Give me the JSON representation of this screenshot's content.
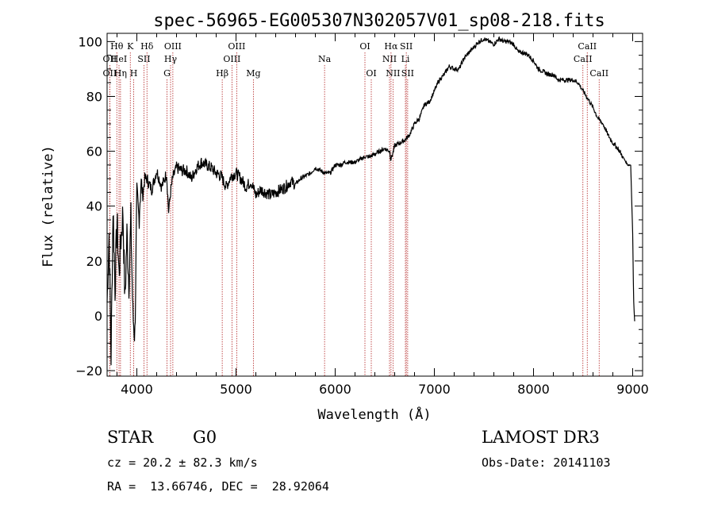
{
  "chart_data": {
    "type": "line",
    "title": "spec-56965-EG005307N302057V01_sp08-218.fits",
    "xlabel": "Wavelength (Å)",
    "ylabel": "Flux (relative)",
    "xlim": [
      3700,
      9100
    ],
    "ylim": [
      -22,
      103
    ],
    "xticks": [
      4000,
      5000,
      6000,
      7000,
      8000,
      9000
    ],
    "yticks": [
      -20,
      0,
      20,
      40,
      60,
      80,
      100
    ],
    "xtick_labels": [
      "4000",
      "5000",
      "6000",
      "7000",
      "8000",
      "9000"
    ],
    "ytick_labels": [
      "−20",
      "0",
      "20",
      "40",
      "60",
      "80",
      "100"
    ],
    "series": [
      {
        "name": "spectrum",
        "x": [
          3700,
          3720,
          3740,
          3760,
          3780,
          3800,
          3820,
          3840,
          3860,
          3880,
          3900,
          3920,
          3940,
          3960,
          3980,
          4000,
          4020,
          4040,
          4060,
          4080,
          4100,
          4150,
          4200,
          4250,
          4300,
          4320,
          4340,
          4360,
          4400,
          4450,
          4500,
          4550,
          4600,
          4650,
          4700,
          4750,
          4800,
          4850,
          4900,
          4950,
          5000,
          5050,
          5100,
          5150,
          5200,
          5250,
          5300,
          5350,
          5400,
          5450,
          5500,
          5550,
          5600,
          5650,
          5700,
          5750,
          5800,
          5850,
          5900,
          5950,
          6000,
          6050,
          6100,
          6150,
          6200,
          6250,
          6300,
          6350,
          6400,
          6450,
          6500,
          6550,
          6560,
          6580,
          6600,
          6650,
          6700,
          6750,
          6800,
          6850,
          6900,
          6950,
          7000,
          7050,
          7100,
          7150,
          7200,
          7250,
          7300,
          7350,
          7400,
          7450,
          7500,
          7550,
          7600,
          7650,
          7700,
          7750,
          7800,
          7850,
          7900,
          7950,
          8000,
          8050,
          8100,
          8150,
          8200,
          8250,
          8300,
          8350,
          8400,
          8450,
          8500,
          8550,
          8600,
          8650,
          8700,
          8750,
          8800,
          8850,
          8900,
          8950,
          8980,
          9000,
          9010,
          9020
        ],
        "y": [
          5,
          30,
          -15,
          40,
          10,
          35,
          15,
          28,
          38,
          5,
          30,
          12,
          35,
          0,
          -7,
          42,
          36,
          48,
          44,
          50,
          50,
          46,
          53,
          47,
          52,
          38,
          45,
          50,
          54,
          53,
          53,
          50,
          54,
          56,
          55,
          54,
          52,
          51,
          47,
          51,
          52,
          50,
          47,
          49,
          44,
          46,
          45,
          44,
          45,
          46,
          47,
          49,
          48,
          50,
          51,
          52,
          54,
          53,
          52,
          52,
          55,
          55,
          56,
          56,
          56,
          57,
          58,
          58,
          59,
          60,
          61,
          60,
          57,
          59,
          62,
          63,
          64,
          66,
          70,
          72,
          77,
          78,
          82,
          86,
          88,
          91,
          90,
          90,
          94,
          96,
          98,
          100,
          101,
          100,
          99,
          101,
          100,
          100,
          99,
          96,
          96,
          95,
          93,
          90,
          89,
          88,
          88,
          86,
          86,
          86,
          86,
          85,
          82,
          79,
          76,
          72,
          70,
          66,
          63,
          61,
          58,
          55,
          55,
          30,
          5,
          -2
        ]
      }
    ],
    "spectral_lines": [
      {
        "label": "Hθ",
        "wavelength": 3798,
        "row": 1
      },
      {
        "label": "OII",
        "wavelength": 3727,
        "row": 2
      },
      {
        "label": "OII",
        "wavelength": 3727,
        "row": 3
      },
      {
        "label": "HeI",
        "wavelength": 3820,
        "row": 2
      },
      {
        "label": "Hη",
        "wavelength": 3835,
        "row": 3
      },
      {
        "label": "K",
        "wavelength": 3934,
        "row": 1
      },
      {
        "label": "H",
        "wavelength": 3968,
        "row": 3
      },
      {
        "label": "SII",
        "wavelength": 4072,
        "row": 2
      },
      {
        "label": "Hδ",
        "wavelength": 4102,
        "row": 1
      },
      {
        "label": "OIII",
        "wavelength": 4363,
        "row": 1
      },
      {
        "label": "Hγ",
        "wavelength": 4340,
        "row": 2
      },
      {
        "label": "G",
        "wavelength": 4304,
        "row": 3
      },
      {
        "label": "Hβ",
        "wavelength": 4861,
        "row": 3
      },
      {
        "label": "OIII",
        "wavelength": 4959,
        "row": 2
      },
      {
        "label": "OIII",
        "wavelength": 5007,
        "row": 1
      },
      {
        "label": "Mg",
        "wavelength": 5175,
        "row": 3
      },
      {
        "label": "Na",
        "wavelength": 5893,
        "row": 2
      },
      {
        "label": "OI",
        "wavelength": 6300,
        "row": 1
      },
      {
        "label": "OI",
        "wavelength": 6364,
        "row": 3
      },
      {
        "label": "NII",
        "wavelength": 6548,
        "row": 2
      },
      {
        "label": "Hα",
        "wavelength": 6563,
        "row": 1
      },
      {
        "label": "NII",
        "wavelength": 6583,
        "row": 3
      },
      {
        "label": "SII",
        "wavelength": 6717,
        "row": 1
      },
      {
        "label": "Li",
        "wavelength": 6708,
        "row": 2
      },
      {
        "label": "SII",
        "wavelength": 6731,
        "row": 3
      },
      {
        "label": "CaII",
        "wavelength": 8498,
        "row": 2
      },
      {
        "label": "CaII",
        "wavelength": 8542,
        "row": 1
      },
      {
        "label": "CaII",
        "wavelength": 8662,
        "row": 3
      }
    ]
  },
  "info": {
    "object_class": "STAR",
    "subclass": "G0",
    "survey": "LAMOST DR3",
    "cz": "cz = 20.2 ± 82.3 km/s",
    "obs_date": "Obs-Date: 20141103",
    "coords": "RA =  13.66746, DEC =  28.92064"
  },
  "colors": {
    "line": "#000000",
    "marker_lines": "#b22222"
  }
}
